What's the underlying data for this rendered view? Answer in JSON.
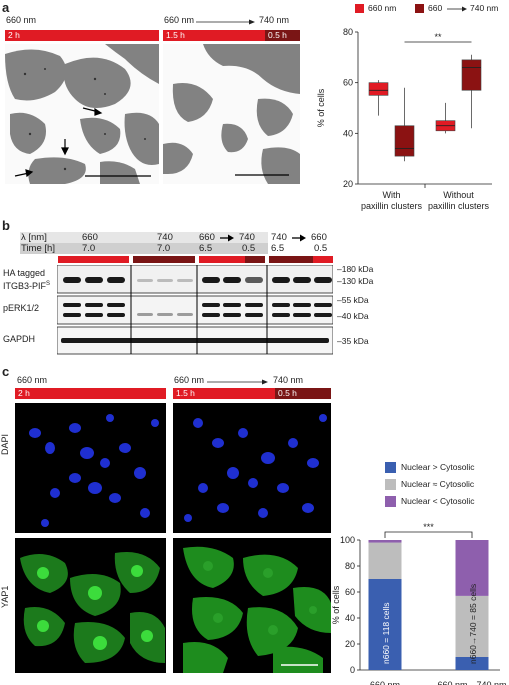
{
  "panel_a": {
    "label": "a",
    "img1": {
      "title": "660 nm",
      "bar_label": "2 h"
    },
    "img2": {
      "title_left": "660 nm",
      "title_right": "740 nm",
      "bar1_label": "1.5 h",
      "bar2_label": "0.5 h"
    },
    "legend": {
      "item1": "660 nm",
      "item2_left": "660",
      "item2_right": "740 nm"
    },
    "chart_data": {
      "type": "box",
      "ylabel": "% of cells",
      "ylim": [
        20,
        80
      ],
      "yticks": [
        20,
        40,
        60,
        80
      ],
      "groups": [
        "With paxillin clusters",
        "Without paxillin clusters"
      ],
      "group_line1": [
        "With",
        "Without"
      ],
      "group_line2": [
        "paxillin clusters",
        "paxillin clusters"
      ],
      "significance": "**",
      "series": [
        {
          "name": "660 nm",
          "color": "#e01b24",
          "boxes": [
            {
              "min": 47,
              "q1": 55,
              "median": 57,
              "q3": 60,
              "max": 61
            },
            {
              "min": 40,
              "q1": 41,
              "median": 43,
              "q3": 45,
              "max": 52
            }
          ]
        },
        {
          "name": "660 → 740 nm",
          "color": "#8b1212",
          "boxes": [
            {
              "min": 29,
              "q1": 31,
              "median": 34,
              "q3": 43,
              "max": 58
            },
            {
              "min": 42,
              "q1": 57,
              "median": 66,
              "q3": 69,
              "max": 71
            }
          ]
        }
      ]
    }
  },
  "panel_b": {
    "label": "b",
    "lambda_label": "λ [nm]",
    "time_label": "Time [h]",
    "groups": [
      {
        "l1": "660",
        "l2": "",
        "t1": "7.0",
        "t2": ""
      },
      {
        "l1": "740",
        "l2": "",
        "t1": "7.0",
        "t2": ""
      },
      {
        "l1": "660",
        "l2": "740",
        "t1": "6.5",
        "t2": "0.5"
      },
      {
        "l1": "740",
        "l2": "660",
        "t1": "6.5",
        "t2": "0.5"
      }
    ],
    "rows": [
      {
        "label1": "HA tagged",
        "label2": "ITGB3-PIF",
        "sup": "S",
        "markers": [
          "–180 kDa",
          "–130 kDa"
        ]
      },
      {
        "label1": "pERK1/2",
        "markers": [
          "–55 kDa",
          "–40 kDa"
        ]
      },
      {
        "label1": "GAPDH",
        "markers": [
          "–35 kDa"
        ]
      }
    ]
  },
  "panel_c": {
    "label": "c",
    "col1": {
      "title": "660 nm",
      "bar_label": "2 h"
    },
    "col2": {
      "title_left": "660 nm",
      "title_right": "740 nm",
      "bar1_label": "1.5 h",
      "bar2_label": "0.5 h"
    },
    "row_labels": [
      "DAPI",
      "YAP1"
    ],
    "legend": [
      "Nuclear > Cytosolic",
      "Nuclear ≈ Cytosolic",
      "Nuclear < Cytosolic"
    ],
    "legend_colors": [
      "#3a5fb0",
      "#bdbdbd",
      "#8e5fad"
    ],
    "chart_data": {
      "type": "stacked_bar",
      "ylabel": "% of cells",
      "ylim": [
        0,
        100
      ],
      "yticks": [
        0,
        20,
        40,
        60,
        80,
        100
      ],
      "categories": [
        "660 nm",
        "660 nm→740 nm"
      ],
      "significance": "***",
      "n_labels": [
        "n660 = 118 cells",
        "n660→740 = 85 cells"
      ],
      "series": [
        {
          "name": "Nuclear > Cytosolic",
          "color": "#3a5fb0",
          "values": [
            70,
            10
          ]
        },
        {
          "name": "Nuclear ≈ Cytosolic",
          "color": "#bdbdbd",
          "values": [
            28,
            47
          ]
        },
        {
          "name": "Nuclear < Cytosolic",
          "color": "#8e5fad",
          "values": [
            2,
            43
          ]
        }
      ]
    }
  }
}
